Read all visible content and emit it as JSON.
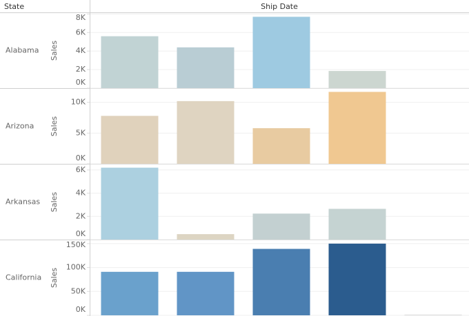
{
  "header": {
    "row_label": "State",
    "column_label": "Ship Date"
  },
  "chart_data": [
    {
      "type": "bar",
      "title": "Alabama",
      "y_label": "Sales",
      "categories": [
        null,
        null,
        null,
        null
      ],
      "values": [
        5600,
        4400,
        7700,
        1850
      ],
      "colors": [
        "#c1d3d4",
        "#b9cdd4",
        "#9ecae1",
        "#ccd6d0"
      ],
      "ylim": [
        0,
        8100
      ],
      "yticks": [
        {
          "value": 0,
          "label": "0K"
        },
        {
          "value": 2000,
          "label": "2K"
        },
        {
          "value": 4000,
          "label": "4K"
        },
        {
          "value": 6000,
          "label": "6K"
        },
        {
          "value": 8000,
          "label": "8K"
        }
      ],
      "grid": true
    },
    {
      "type": "bar",
      "title": "Arizona",
      "y_label": "Sales",
      "categories": [
        null,
        null,
        null,
        null
      ],
      "values": [
        7800,
        10200,
        5800,
        11700
      ],
      "colors": [
        "#e0d2bc",
        "#dfd4c1",
        "#e8cba1",
        "#f0c891"
      ],
      "ylim": [
        0,
        12200
      ],
      "yticks": [
        {
          "value": 0,
          "label": "0K"
        },
        {
          "value": 5000,
          "label": "5K"
        },
        {
          "value": 10000,
          "label": "10K"
        }
      ],
      "grid": true
    },
    {
      "type": "bar",
      "title": "Arkansas",
      "y_label": "Sales",
      "categories": [
        null,
        null,
        null,
        null
      ],
      "values": [
        6200,
        470,
        2240,
        2650
      ],
      "colors": [
        "#acd0e0",
        "#ddd5c3",
        "#c3d0d1",
        "#c5d3d2"
      ],
      "ylim": [
        0,
        6470
      ],
      "yticks": [
        {
          "value": 0,
          "label": "0K"
        },
        {
          "value": 2000,
          "label": "2K"
        },
        {
          "value": 4000,
          "label": "4K"
        },
        {
          "value": 6000,
          "label": "6K"
        }
      ],
      "grid": true
    },
    {
      "type": "bar",
      "title": "California",
      "y_label": "Sales",
      "categories": [
        null,
        null,
        null,
        null,
        null
      ],
      "values": [
        91000,
        91000,
        139000,
        150000,
        1400
      ],
      "colors": [
        "#6aa1cc",
        "#6195c6",
        "#4a7eb0",
        "#2b5c8e",
        "#d9d9d9"
      ],
      "ylim": [
        0,
        157000
      ],
      "yticks": [
        {
          "value": 0,
          "label": "0K"
        },
        {
          "value": 50000,
          "label": "50K"
        },
        {
          "value": 100000,
          "label": "100K"
        },
        {
          "value": 150000,
          "label": "150K"
        }
      ],
      "grid": true
    }
  ]
}
